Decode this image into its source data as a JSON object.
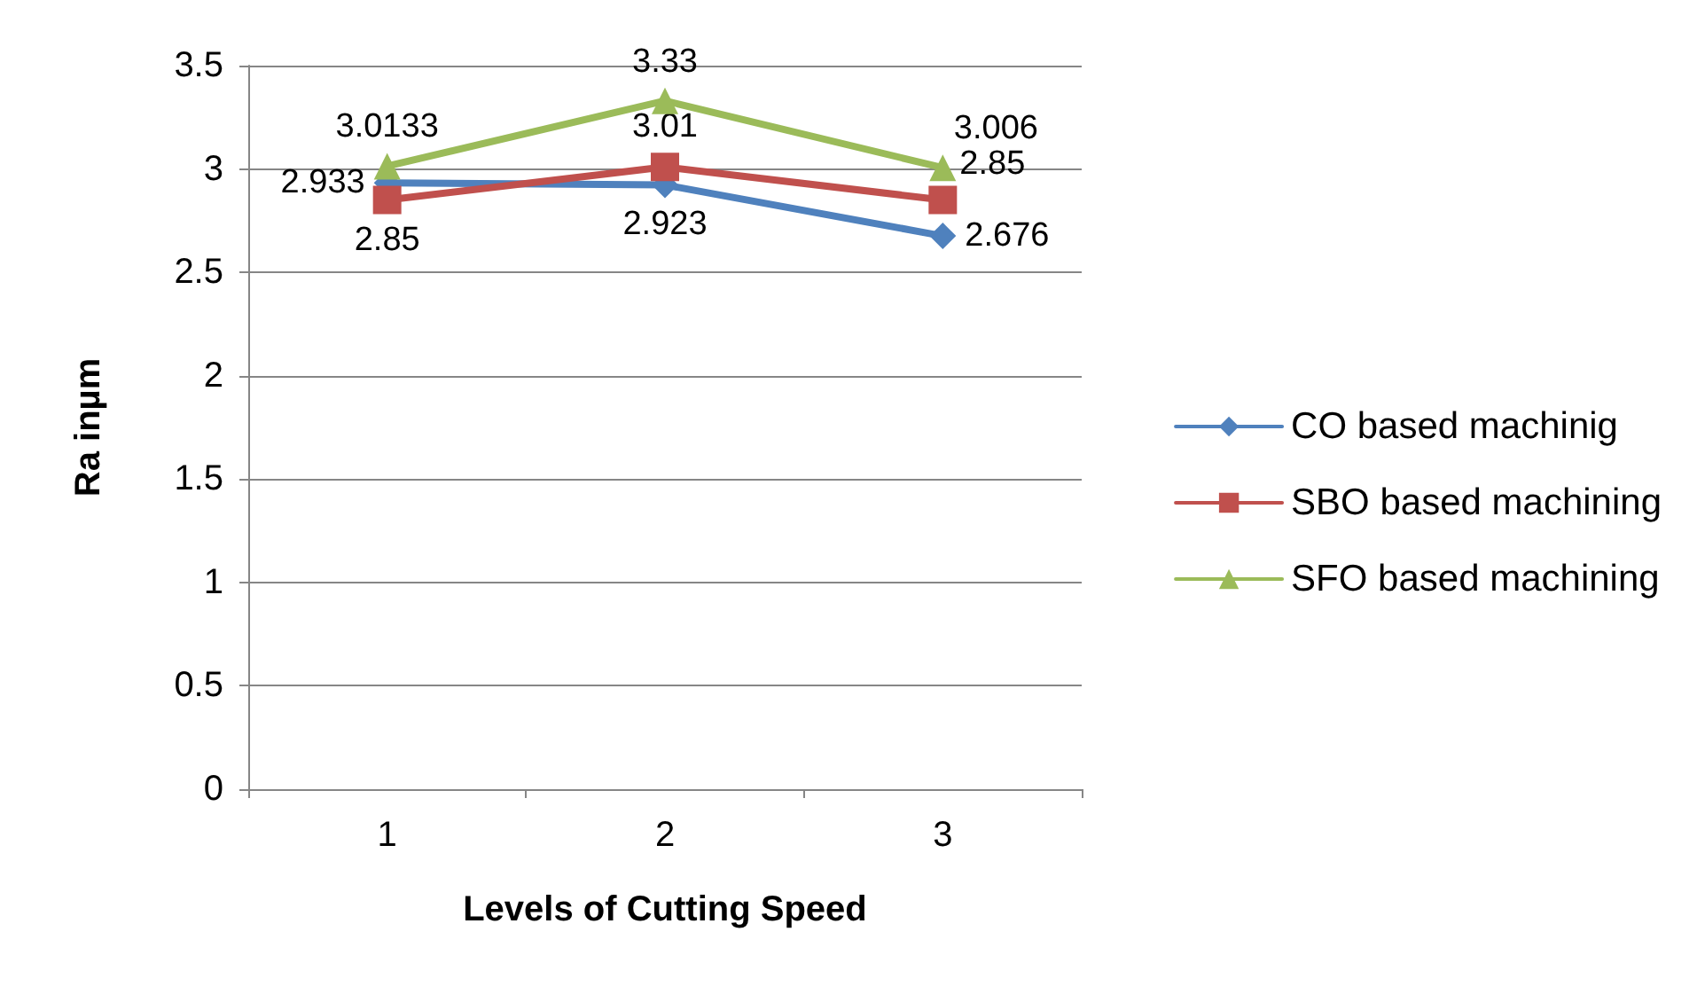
{
  "chart_data": {
    "type": "line",
    "xlabel": "Levels of Cutting Speed",
    "ylabel": "Ra inµm",
    "categories": [
      "1",
      "2",
      "3"
    ],
    "series": [
      {
        "name": "CO based machinig",
        "color": "#4f81bd",
        "marker": "diamond",
        "values": [
          2.933,
          2.923,
          2.676
        ]
      },
      {
        "name": "SBO based machining",
        "color": "#c0504d",
        "marker": "square",
        "values": [
          2.85,
          3.01,
          2.85
        ]
      },
      {
        "name": "SFO based machining",
        "color": "#9bbb59",
        "marker": "triangle",
        "values": [
          3.0133,
          3.33,
          3.006
        ]
      }
    ],
    "ylim": [
      0,
      3.5
    ],
    "yticks": [
      0,
      0.5,
      1,
      1.5,
      2,
      2.5,
      3,
      3.5
    ],
    "grid": "y",
    "legend": "right",
    "data_labels": true
  }
}
